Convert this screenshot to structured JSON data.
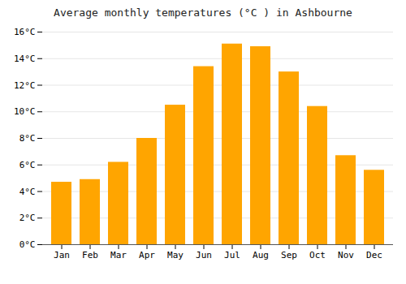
{
  "chart_data": {
    "type": "bar",
    "title": "Average monthly temperatures (°C ) in Ashbourne",
    "categories": [
      "Jan",
      "Feb",
      "Mar",
      "Apr",
      "May",
      "Jun",
      "Jul",
      "Aug",
      "Sep",
      "Oct",
      "Nov",
      "Dec"
    ],
    "values": [
      4.7,
      4.9,
      6.2,
      8.0,
      10.5,
      13.4,
      15.1,
      14.9,
      13.0,
      10.4,
      6.7,
      5.6
    ],
    "color": "#FFA500",
    "ylim": [
      0,
      16
    ],
    "yticks": [
      {
        "value": 0,
        "label": "0°C"
      },
      {
        "value": 2,
        "label": "2°C"
      },
      {
        "value": 4,
        "label": "4°C"
      },
      {
        "value": 6,
        "label": "6°C"
      },
      {
        "value": 8,
        "label": "8°C"
      },
      {
        "value": 10,
        "label": "10°C"
      },
      {
        "value": 12,
        "label": "12°C"
      },
      {
        "value": 14,
        "label": "14°C"
      },
      {
        "value": 16,
        "label": "16°C"
      }
    ],
    "grid": true
  }
}
